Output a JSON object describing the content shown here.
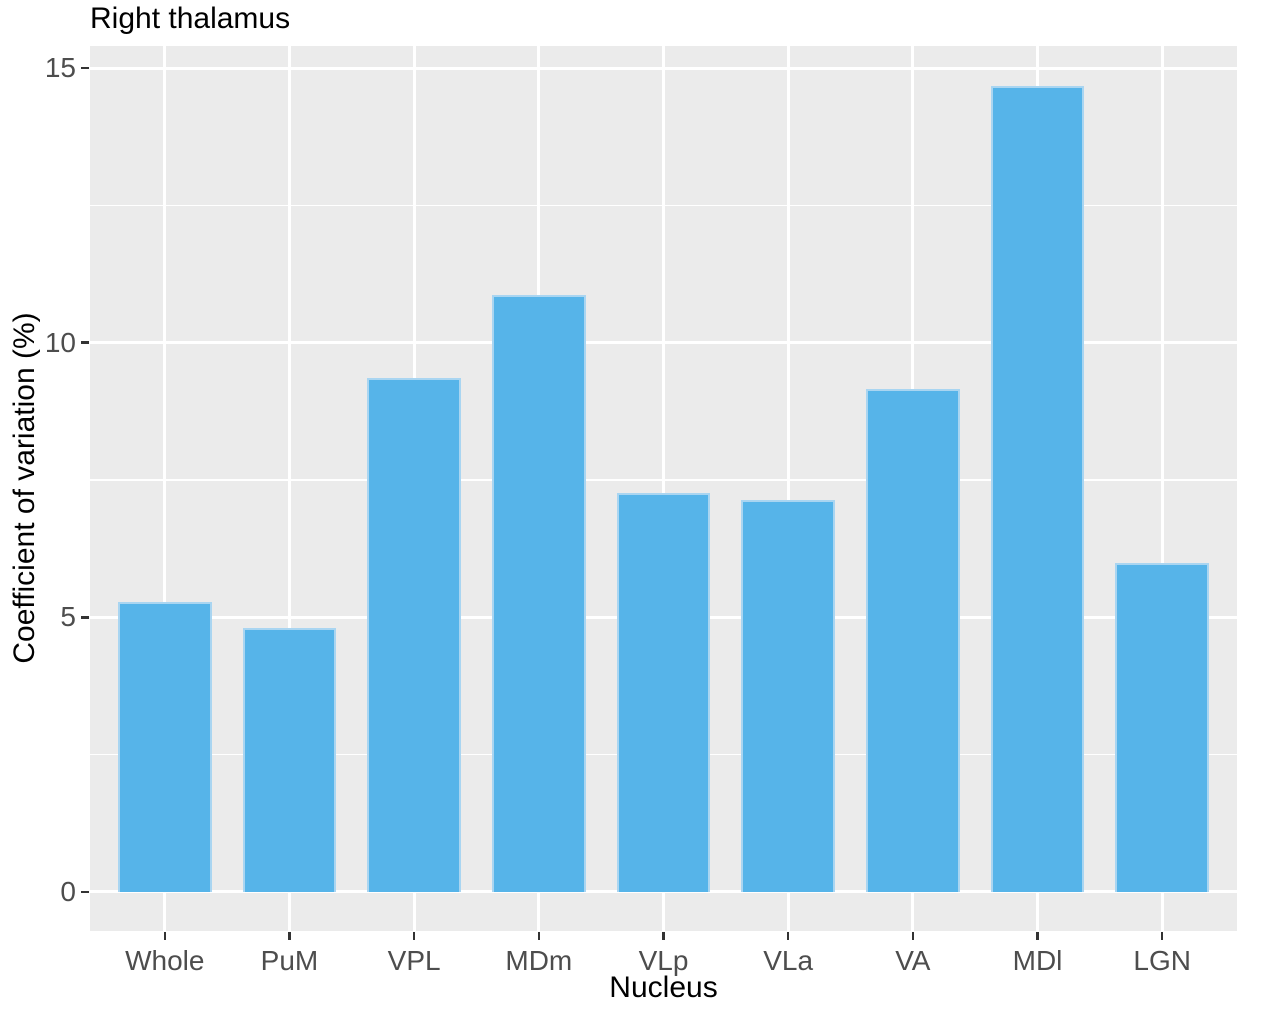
{
  "chart_data": {
    "type": "bar",
    "title": "Right thalamus",
    "xlabel": "Nucleus",
    "ylabel": "Coefficient of variation (%)",
    "categories": [
      "Whole",
      "PuM",
      "VPL",
      "MDm",
      "VLp",
      "VLa",
      "VA",
      "MDl",
      "LGN"
    ],
    "values": [
      5.28,
      4.81,
      9.36,
      10.87,
      7.26,
      7.14,
      9.16,
      14.68,
      5.99
    ],
    "ylim": [
      -0.71,
      15.41
    ],
    "yticks": [
      0,
      5,
      10,
      15
    ],
    "ytick_labels": [
      "0",
      "5",
      "10",
      "15"
    ],
    "yticks_minor": [
      2.5,
      7.5,
      12.5
    ],
    "grid": true,
    "legend_position": "none",
    "colors": {
      "bar_fill": "#56B4E9",
      "bar_edge": "#A9D5F1",
      "panel_background": "#EBEBEB",
      "gridline": "#FFFFFF",
      "tick_mark": "#333333",
      "tick_label": "#4D4D4D",
      "title_text": "#000000"
    }
  }
}
